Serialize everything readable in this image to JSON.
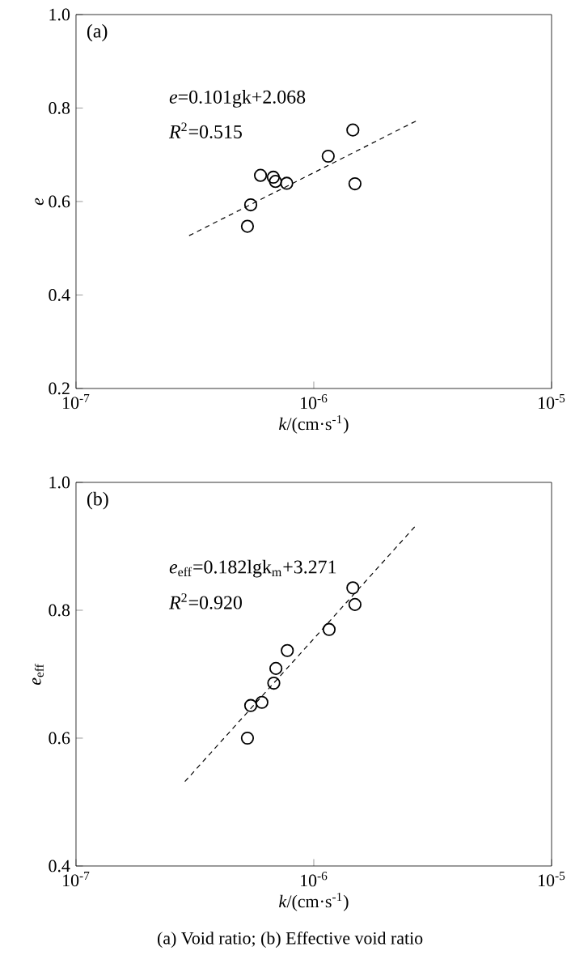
{
  "chart_data": [
    {
      "type": "scatter",
      "title": "(a)",
      "xlabel": "*k*/(cm·s$^{-1}$)",
      "ylabel": "*e*",
      "log": "x",
      "grid": false,
      "marker": "circle",
      "xlim": [
        1e-07,
        1e-05
      ],
      "ylim": [
        0.2,
        1.0
      ],
      "xticks": [
        {
          "value": 1e-07,
          "label": "10$^{-7}$"
        },
        {
          "value": 1e-06,
          "label": "10$^{-6}$"
        },
        {
          "value": 1e-05,
          "label": "10$^{-5}$"
        }
      ],
      "yticks": [
        0.2,
        0.4,
        0.6,
        0.8,
        {
          "value": 1.0,
          "label": "1.0"
        }
      ],
      "annotations": [
        "*e*=0.101gk+2.068",
        "*R*$^{2}$=0.515"
      ],
      "series": [
        {
          "color": "#000000",
          "x": [
            5.26e-07,
            5.43e-07,
            5.97e-07,
            6.76e-07,
            6.9e-07,
            7.7e-07,
            1.15e-06,
            1.46e-06,
            1.49e-06
          ],
          "values": [
            0.547,
            0.593,
            0.656,
            0.652,
            0.643,
            0.639,
            0.697,
            0.753,
            0.638
          ]
        },
        {
          "type": "line",
          "line_style": "dashed",
          "marker": "none",
          "color": "#000000",
          "x": [
            2.99e-07,
            2.71e-06
          ],
          "values": [
            0.527,
            0.773
          ]
        }
      ]
    },
    {
      "type": "scatter",
      "title": "(b)",
      "xlabel": "*k*/(cm·s$^{-1}$)",
      "ylabel": "*e*$_{eff}$",
      "log": "x",
      "grid": false,
      "marker": "circle",
      "xlim": [
        1e-07,
        1e-05
      ],
      "ylim": [
        0.4,
        1.0
      ],
      "xticks": [
        {
          "value": 1e-07,
          "label": "10$^{-7}$"
        },
        {
          "value": 1e-06,
          "label": "10$^{-6}$"
        },
        {
          "value": 1e-05,
          "label": "10$^{-5}$"
        }
      ],
      "yticks": [
        0.4,
        0.6,
        0.8,
        {
          "value": 1.0,
          "label": "1.0"
        }
      ],
      "annotations": [
        "*e*$_{eff}$=0.182lgk$_{m}$+3.271",
        "*R*$^{2}$=0.920",
        "(a) Void ratio; (b) Effective  void ratio"
      ],
      "series": [
        {
          "color": "#000000",
          "x": [
            5.26e-07,
            5.43e-07,
            6.05e-07,
            6.79e-07,
            6.93e-07,
            7.74e-07,
            1.16e-06,
            1.46e-06,
            1.49e-06
          ],
          "values": [
            0.6,
            0.651,
            0.656,
            0.686,
            0.709,
            0.737,
            0.77,
            0.835,
            0.809
          ]
        },
        {
          "type": "line",
          "line_style": "dashed",
          "marker": "none",
          "color": "#000000",
          "x": [
            2.87e-07,
            2.71e-06
          ],
          "values": [
            0.532,
            0.934
          ]
        }
      ]
    }
  ]
}
